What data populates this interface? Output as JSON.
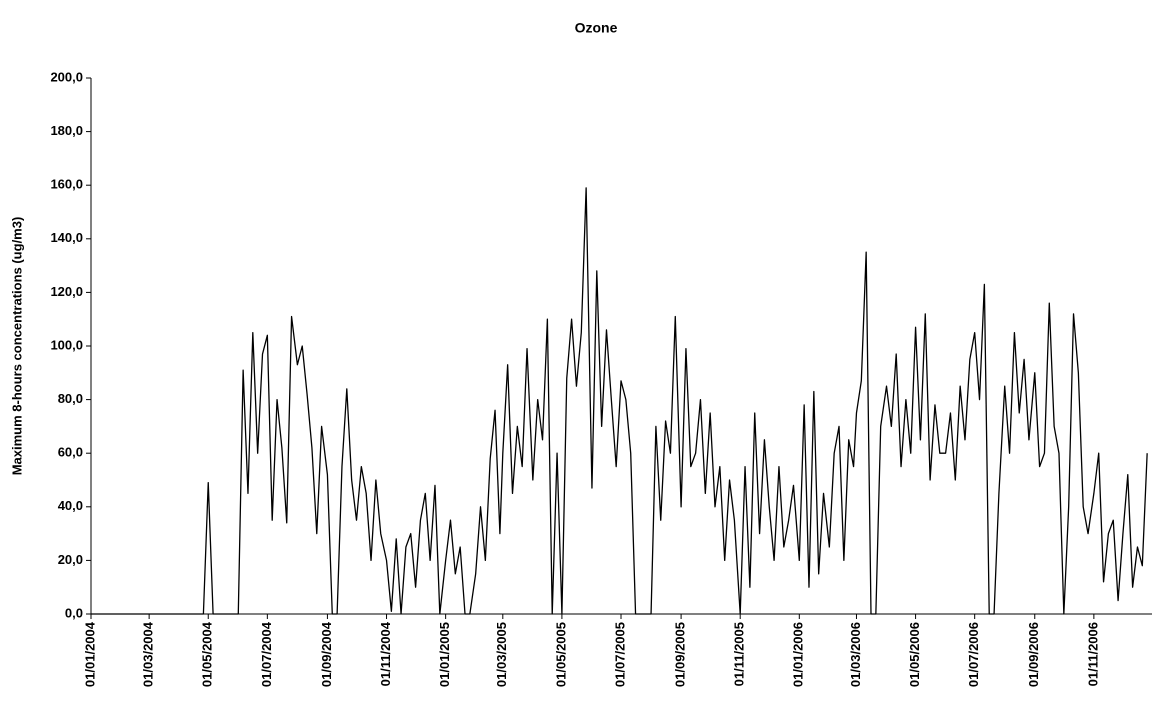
{
  "chart_data": {
    "type": "line",
    "title": "Ozone",
    "y_label": "Maximum 8-hours concentrations (ug/m3)",
    "color": "#000000",
    "grid": false,
    "ylim": [
      0,
      200
    ],
    "yticks": [
      {
        "value": 0,
        "label": "0,0"
      },
      {
        "value": 20,
        "label": "20,0"
      },
      {
        "value": 40,
        "label": "40,0"
      },
      {
        "value": 60,
        "label": "60,0"
      },
      {
        "value": 80,
        "label": "80,0"
      },
      {
        "value": 100,
        "label": "100,0"
      },
      {
        "value": 120,
        "label": "120,0"
      },
      {
        "value": 140,
        "label": "140,0"
      },
      {
        "value": 160,
        "label": "160,0"
      },
      {
        "value": 180,
        "label": "180,0"
      },
      {
        "value": 200,
        "label": "200,0"
      }
    ],
    "xlim": [
      "01/01/2004",
      "31/12/2006"
    ],
    "xticks": [
      "01/01/2004",
      "01/03/2004",
      "01/05/2004",
      "01/07/2004",
      "01/09/2004",
      "01/11/2004",
      "01/01/2005",
      "01/03/2005",
      "01/05/2005",
      "01/07/2005",
      "01/09/2005",
      "01/11/2005",
      "01/01/2006",
      "01/03/2006",
      "01/05/2006",
      "01/07/2006",
      "01/09/2006",
      "01/11/2006"
    ],
    "x": [
      "01/01/2004",
      "06/01/2004",
      "11/01/2004",
      "16/01/2004",
      "21/01/2004",
      "26/01/2004",
      "01/02/2004",
      "06/02/2004",
      "11/02/2004",
      "16/02/2004",
      "21/02/2004",
      "26/02/2004",
      "01/03/2004",
      "06/03/2004",
      "11/03/2004",
      "16/03/2004",
      "21/03/2004",
      "26/03/2004",
      "01/04/2004",
      "06/04/2004",
      "11/04/2004",
      "16/04/2004",
      "21/04/2004",
      "26/04/2004",
      "01/05/2004",
      "06/05/2004",
      "11/05/2004",
      "16/05/2004",
      "21/05/2004",
      "26/05/2004",
      "01/06/2004",
      "06/06/2004",
      "11/06/2004",
      "16/06/2004",
      "21/06/2004",
      "26/06/2004",
      "01/07/2004",
      "06/07/2004",
      "11/07/2004",
      "16/07/2004",
      "21/07/2004",
      "26/07/2004",
      "01/08/2004",
      "06/08/2004",
      "11/08/2004",
      "16/08/2004",
      "21/08/2004",
      "26/08/2004",
      "01/09/2004",
      "06/09/2004",
      "11/09/2004",
      "16/09/2004",
      "21/09/2004",
      "26/09/2004",
      "01/10/2004",
      "06/10/2004",
      "11/10/2004",
      "16/10/2004",
      "21/10/2004",
      "26/10/2004",
      "01/11/2004",
      "06/11/2004",
      "11/11/2004",
      "16/11/2004",
      "21/11/2004",
      "26/11/2004",
      "01/12/2004",
      "06/12/2004",
      "11/12/2004",
      "16/12/2004",
      "21/12/2004",
      "26/12/2004",
      "01/01/2005",
      "06/01/2005",
      "11/01/2005",
      "16/01/2005",
      "21/01/2005",
      "26/01/2005",
      "01/02/2005",
      "06/02/2005",
      "11/02/2005",
      "16/02/2005",
      "21/02/2005",
      "26/02/2005",
      "01/03/2005",
      "06/03/2005",
      "11/03/2005",
      "16/03/2005",
      "21/03/2005",
      "26/03/2005",
      "01/04/2005",
      "06/04/2005",
      "11/04/2005",
      "16/04/2005",
      "21/04/2005",
      "26/04/2005",
      "01/05/2005",
      "06/05/2005",
      "11/05/2005",
      "16/05/2005",
      "21/05/2005",
      "26/05/2005",
      "01/06/2005",
      "06/06/2005",
      "11/06/2005",
      "16/06/2005",
      "21/06/2005",
      "26/06/2005",
      "01/07/2005",
      "06/07/2005",
      "11/07/2005",
      "16/07/2005",
      "21/07/2005",
      "26/07/2005",
      "01/08/2005",
      "06/08/2005",
      "11/08/2005",
      "16/08/2005",
      "21/08/2005",
      "26/08/2005",
      "01/09/2005",
      "06/09/2005",
      "11/09/2005",
      "16/09/2005",
      "21/09/2005",
      "26/09/2005",
      "01/10/2005",
      "06/10/2005",
      "11/10/2005",
      "16/10/2005",
      "21/10/2005",
      "26/10/2005",
      "01/11/2005",
      "06/11/2005",
      "11/11/2005",
      "16/11/2005",
      "21/11/2005",
      "26/11/2005",
      "01/12/2005",
      "06/12/2005",
      "11/12/2005",
      "16/12/2005",
      "21/12/2005",
      "26/12/2005",
      "01/01/2006",
      "06/01/2006",
      "11/01/2006",
      "16/01/2006",
      "21/01/2006",
      "26/01/2006",
      "01/02/2006",
      "06/02/2006",
      "11/02/2006",
      "16/02/2006",
      "21/02/2006",
      "26/02/2006",
      "01/03/2006",
      "06/03/2006",
      "11/03/2006",
      "16/03/2006",
      "21/03/2006",
      "26/03/2006",
      "01/04/2006",
      "06/04/2006",
      "11/04/2006",
      "16/04/2006",
      "21/04/2006",
      "26/04/2006",
      "01/05/2006",
      "06/05/2006",
      "11/05/2006",
      "16/05/2006",
      "21/05/2006",
      "26/05/2006",
      "01/06/2006",
      "06/06/2006",
      "11/06/2006",
      "16/06/2006",
      "21/06/2006",
      "26/06/2006",
      "01/07/2006",
      "06/07/2006",
      "11/07/2006",
      "16/07/2006",
      "21/07/2006",
      "26/07/2006",
      "01/08/2006",
      "06/08/2006",
      "11/08/2006",
      "16/08/2006",
      "21/08/2006",
      "26/08/2006",
      "01/09/2006",
      "06/09/2006",
      "11/09/2006",
      "16/09/2006",
      "21/09/2006",
      "26/09/2006",
      "01/10/2006",
      "06/10/2006",
      "11/10/2006",
      "16/10/2006",
      "21/10/2006",
      "26/10/2006",
      "01/11/2006",
      "06/11/2006",
      "11/11/2006",
      "16/11/2006",
      "21/11/2006",
      "26/11/2006",
      "01/12/2006",
      "06/12/2006",
      "11/12/2006",
      "16/12/2006",
      "21/12/2006",
      "26/12/2006"
    ],
    "values": [
      0,
      0,
      0,
      0,
      0,
      0,
      0,
      0,
      0,
      0,
      0,
      0,
      0,
      0,
      0,
      0,
      0,
      0,
      0,
      0,
      0,
      0,
      0,
      0,
      49,
      0,
      0,
      0,
      0,
      0,
      0,
      91,
      45,
      105,
      60,
      97,
      104,
      35,
      80,
      62,
      34,
      111,
      93,
      100,
      82,
      62,
      30,
      70,
      52,
      0,
      0,
      55,
      84,
      50,
      35,
      55,
      45,
      20,
      50,
      30,
      20,
      1,
      28,
      0,
      25,
      30,
      10,
      35,
      45,
      20,
      48,
      0,
      20,
      35,
      15,
      25,
      0,
      0,
      15,
      40,
      20,
      58,
      76,
      30,
      60,
      93,
      45,
      70,
      55,
      99,
      50,
      80,
      65,
      110,
      0,
      60,
      0,
      88,
      110,
      85,
      105,
      159,
      47,
      128,
      70,
      106,
      80,
      55,
      87,
      80,
      60,
      0,
      0,
      0,
      0,
      70,
      35,
      72,
      60,
      111,
      40,
      99,
      55,
      60,
      80,
      45,
      75,
      40,
      55,
      20,
      50,
      35,
      0,
      55,
      10,
      75,
      30,
      65,
      40,
      20,
      55,
      25,
      35,
      48,
      20,
      78,
      10,
      83,
      15,
      45,
      25,
      60,
      70,
      20,
      65,
      55,
      75,
      87,
      135,
      0,
      0,
      70,
      85,
      70,
      97,
      55,
      80,
      60,
      107,
      65,
      112,
      50,
      78,
      60,
      60,
      75,
      50,
      85,
      65,
      95,
      105,
      80,
      123,
      0,
      0,
      45,
      85,
      60,
      105,
      75,
      95,
      65,
      90,
      55,
      60,
      116,
      70,
      60,
      0,
      40,
      112,
      90,
      40,
      30,
      45,
      60,
      12,
      30,
      35,
      5,
      30,
      52,
      10,
      25,
      18,
      60
    ]
  }
}
